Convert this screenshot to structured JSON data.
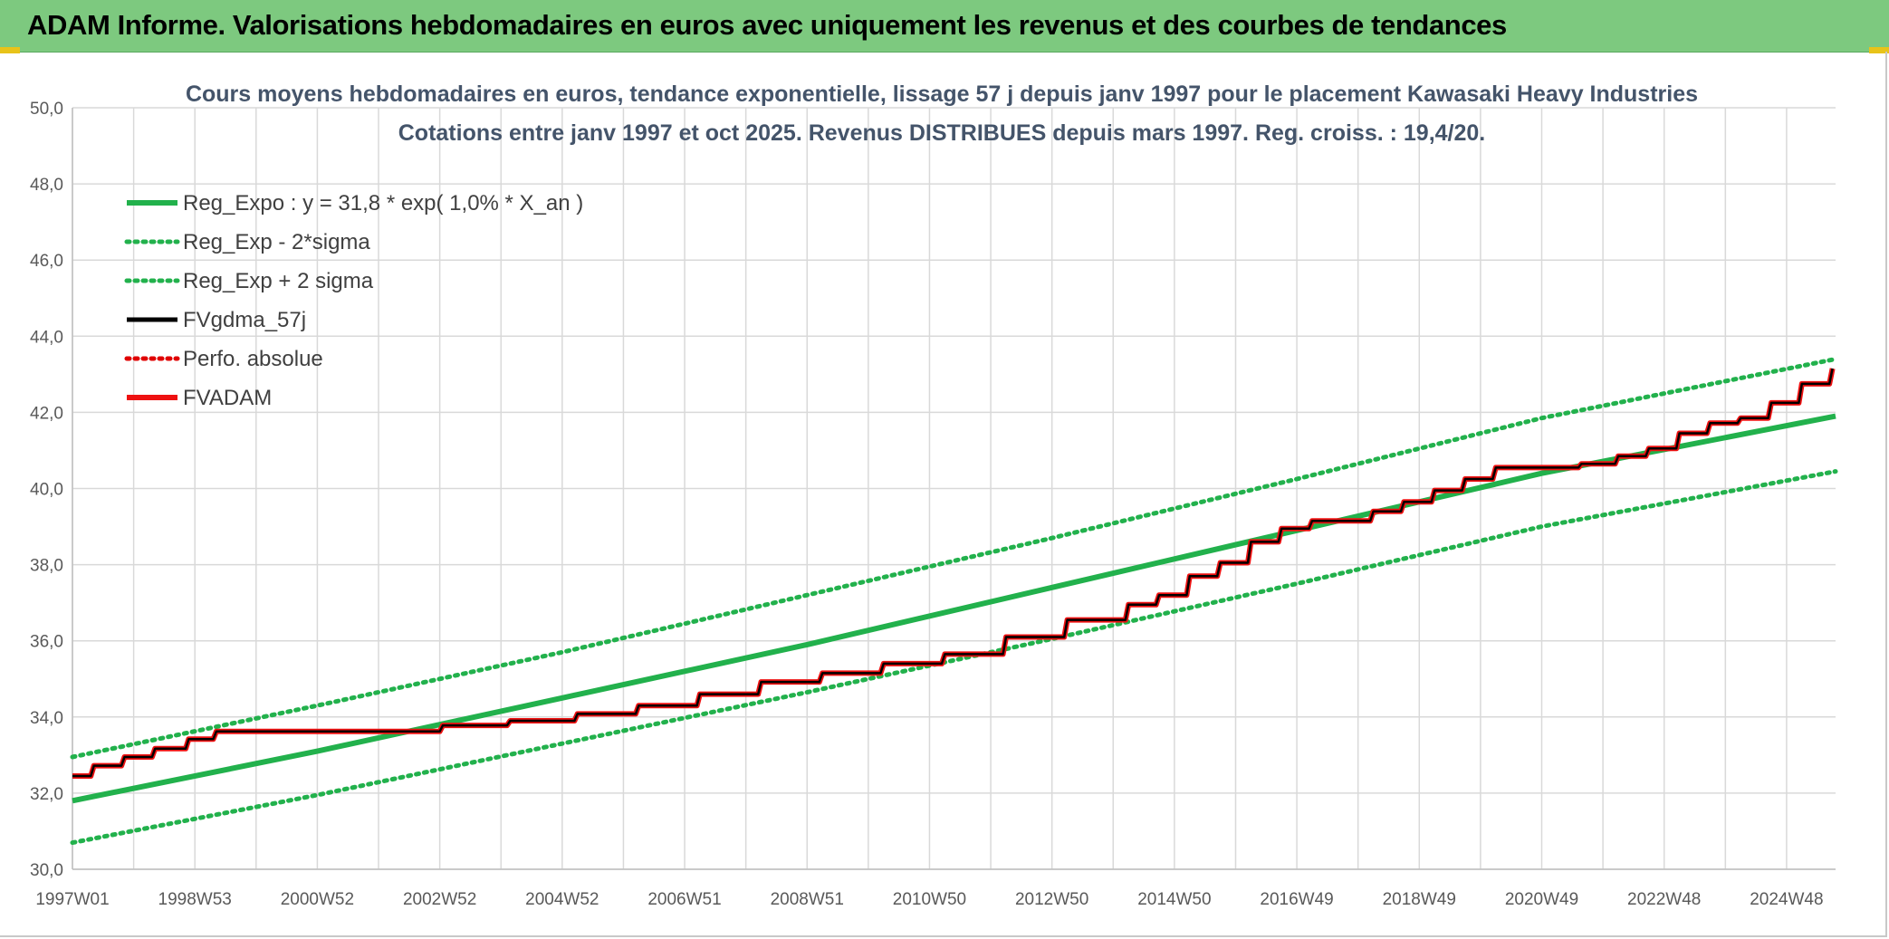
{
  "banner": {
    "title": "ADAM Informe. Valorisations hebdomadaires en euros avec uniquement les revenus et des courbes de tendances"
  },
  "colors": {
    "banner_bg": "#7dc97f",
    "accent_tab": "#e8c31a",
    "reg_expo": "#22b14c",
    "reg_band": "#22b14c",
    "fvgdma": "#000000",
    "perfo": "#e00000",
    "fvadam": "#ee1111",
    "grid": "#d9d9d9"
  },
  "chart_data": {
    "type": "line",
    "title_line1": "Cours moyens hebdomadaires en euros, tendance exponentielle, lissage 57 j depuis janv 1997 pour le placement Kawasaki Heavy Industries",
    "title_line2": "Cotations entre janv 1997 et oct 2025. Revenus DISTRIBUES depuis mars 1997. Reg. croiss. : 19,4/20.",
    "xlabel": "",
    "ylabel": "",
    "ylim": [
      30,
      50
    ],
    "y_ticks": [
      "30,0",
      "32,0",
      "34,0",
      "36,0",
      "38,0",
      "40,0",
      "42,0",
      "44,0",
      "46,0",
      "48,0",
      "50,0"
    ],
    "x_range": [
      1997.0,
      2025.8
    ],
    "x_ticks": [
      {
        "x": 1997.0,
        "label": "1997W01"
      },
      {
        "x": 1999.0,
        "label": "1998W53"
      },
      {
        "x": 2001.0,
        "label": "2000W52"
      },
      {
        "x": 2003.0,
        "label": "2002W52"
      },
      {
        "x": 2005.0,
        "label": "2004W52"
      },
      {
        "x": 2007.0,
        "label": "2006W51"
      },
      {
        "x": 2009.0,
        "label": "2008W51"
      },
      {
        "x": 2011.0,
        "label": "2010W50"
      },
      {
        "x": 2013.0,
        "label": "2012W50"
      },
      {
        "x": 2015.0,
        "label": "2014W50"
      },
      {
        "x": 2017.0,
        "label": "2016W49"
      },
      {
        "x": 2019.0,
        "label": "2018W49"
      },
      {
        "x": 2021.0,
        "label": "2020W49"
      },
      {
        "x": 2023.0,
        "label": "2022W48"
      },
      {
        "x": 2025.0,
        "label": "2024W48"
      }
    ],
    "grid": true,
    "legend_position": "top-left",
    "series": [
      {
        "name": "Reg_Expo : y = 31,8 * exp( 1,0% *  X_an )",
        "style": "solid-thick",
        "color": "#22b14c",
        "points": [
          [
            1997.0,
            31.8
          ],
          [
            2001.0,
            33.1
          ],
          [
            2005.0,
            34.5
          ],
          [
            2009.0,
            35.9
          ],
          [
            2013.0,
            37.4
          ],
          [
            2017.0,
            38.9
          ],
          [
            2021.0,
            40.4
          ],
          [
            2025.8,
            41.9
          ]
        ]
      },
      {
        "name": "Reg_Exp - 2*sigma",
        "style": "dotted",
        "color": "#22b14c",
        "points": [
          [
            1997.0,
            30.7
          ],
          [
            2001.0,
            31.95
          ],
          [
            2005.0,
            33.3
          ],
          [
            2009.0,
            34.65
          ],
          [
            2013.0,
            36.05
          ],
          [
            2017.0,
            37.5
          ],
          [
            2021.0,
            39.0
          ],
          [
            2025.8,
            40.45
          ]
        ]
      },
      {
        "name": "Reg_Exp + 2 sigma",
        "style": "dotted",
        "color": "#22b14c",
        "points": [
          [
            1997.0,
            32.95
          ],
          [
            2001.0,
            34.3
          ],
          [
            2005.0,
            35.7
          ],
          [
            2009.0,
            37.2
          ],
          [
            2013.0,
            38.7
          ],
          [
            2017.0,
            40.25
          ],
          [
            2021.0,
            41.85
          ],
          [
            2025.8,
            43.4
          ]
        ]
      },
      {
        "name": "FVgdma_57j",
        "style": "solid",
        "color": "#000000",
        "points": [
          [
            1997.0,
            32.45
          ],
          [
            1997.3,
            32.45
          ],
          [
            1997.35,
            32.72
          ],
          [
            1997.8,
            32.72
          ],
          [
            1997.85,
            32.95
          ],
          [
            1998.3,
            32.95
          ],
          [
            1998.35,
            33.17
          ],
          [
            1998.85,
            33.17
          ],
          [
            1998.9,
            33.42
          ],
          [
            1999.3,
            33.42
          ],
          [
            1999.35,
            33.62
          ],
          [
            2001.0,
            33.62
          ],
          [
            2003.0,
            33.62
          ],
          [
            2003.05,
            33.78
          ],
          [
            2004.1,
            33.78
          ],
          [
            2004.15,
            33.9
          ],
          [
            2005.2,
            33.9
          ],
          [
            2005.25,
            34.08
          ],
          [
            2006.2,
            34.08
          ],
          [
            2006.25,
            34.3
          ],
          [
            2007.2,
            34.3
          ],
          [
            2007.25,
            34.6
          ],
          [
            2008.2,
            34.6
          ],
          [
            2008.25,
            34.92
          ],
          [
            2009.2,
            34.92
          ],
          [
            2009.25,
            35.15
          ],
          [
            2010.2,
            35.15
          ],
          [
            2010.25,
            35.4
          ],
          [
            2011.2,
            35.4
          ],
          [
            2011.25,
            35.65
          ],
          [
            2012.2,
            35.65
          ],
          [
            2012.25,
            36.1
          ],
          [
            2013.2,
            36.1
          ],
          [
            2013.25,
            36.55
          ],
          [
            2014.2,
            36.55
          ],
          [
            2014.25,
            36.95
          ],
          [
            2014.7,
            36.95
          ],
          [
            2014.75,
            37.2
          ],
          [
            2015.2,
            37.2
          ],
          [
            2015.25,
            37.7
          ],
          [
            2015.7,
            37.7
          ],
          [
            2015.75,
            38.05
          ],
          [
            2016.2,
            38.05
          ],
          [
            2016.25,
            38.6
          ],
          [
            2016.7,
            38.6
          ],
          [
            2016.75,
            38.95
          ],
          [
            2017.2,
            38.95
          ],
          [
            2017.25,
            39.15
          ],
          [
            2018.2,
            39.15
          ],
          [
            2018.25,
            39.4
          ],
          [
            2018.7,
            39.4
          ],
          [
            2018.75,
            39.65
          ],
          [
            2019.2,
            39.65
          ],
          [
            2019.25,
            39.95
          ],
          [
            2019.7,
            39.95
          ],
          [
            2019.75,
            40.25
          ],
          [
            2020.2,
            40.25
          ],
          [
            2020.25,
            40.55
          ],
          [
            2021.6,
            40.55
          ],
          [
            2021.65,
            40.65
          ],
          [
            2022.2,
            40.65
          ],
          [
            2022.25,
            40.85
          ],
          [
            2022.7,
            40.85
          ],
          [
            2022.75,
            41.05
          ],
          [
            2023.2,
            41.05
          ],
          [
            2023.25,
            41.45
          ],
          [
            2023.7,
            41.45
          ],
          [
            2023.75,
            41.72
          ],
          [
            2024.2,
            41.72
          ],
          [
            2024.25,
            41.85
          ],
          [
            2024.7,
            41.85
          ],
          [
            2024.75,
            42.25
          ],
          [
            2025.2,
            42.25
          ],
          [
            2025.25,
            42.75
          ],
          [
            2025.7,
            42.75
          ],
          [
            2025.75,
            43.15
          ]
        ]
      },
      {
        "name": "Perfo. absolue",
        "style": "dotted",
        "color": "#e00000",
        "points": []
      },
      {
        "name": "FVADAM",
        "style": "solid-thick",
        "color": "#ee1111",
        "points": [
          [
            1997.0,
            32.45
          ],
          [
            1997.3,
            32.45
          ],
          [
            1997.35,
            32.72
          ],
          [
            1997.8,
            32.72
          ],
          [
            1997.85,
            32.95
          ],
          [
            1998.3,
            32.95
          ],
          [
            1998.35,
            33.17
          ],
          [
            1998.85,
            33.17
          ],
          [
            1998.9,
            33.42
          ],
          [
            1999.3,
            33.42
          ],
          [
            1999.35,
            33.62
          ],
          [
            2001.0,
            33.62
          ],
          [
            2003.0,
            33.62
          ],
          [
            2003.05,
            33.78
          ],
          [
            2004.1,
            33.78
          ],
          [
            2004.15,
            33.9
          ],
          [
            2005.2,
            33.9
          ],
          [
            2005.25,
            34.08
          ],
          [
            2006.2,
            34.08
          ],
          [
            2006.25,
            34.3
          ],
          [
            2007.2,
            34.3
          ],
          [
            2007.25,
            34.6
          ],
          [
            2008.2,
            34.6
          ],
          [
            2008.25,
            34.92
          ],
          [
            2009.2,
            34.92
          ],
          [
            2009.25,
            35.15
          ],
          [
            2010.2,
            35.15
          ],
          [
            2010.25,
            35.4
          ],
          [
            2011.2,
            35.4
          ],
          [
            2011.25,
            35.65
          ],
          [
            2012.2,
            35.65
          ],
          [
            2012.25,
            36.1
          ],
          [
            2013.2,
            36.1
          ],
          [
            2013.25,
            36.55
          ],
          [
            2014.2,
            36.55
          ],
          [
            2014.25,
            36.95
          ],
          [
            2014.7,
            36.95
          ],
          [
            2014.75,
            37.2
          ],
          [
            2015.2,
            37.2
          ],
          [
            2015.25,
            37.7
          ],
          [
            2015.7,
            37.7
          ],
          [
            2015.75,
            38.05
          ],
          [
            2016.2,
            38.05
          ],
          [
            2016.25,
            38.6
          ],
          [
            2016.7,
            38.6
          ],
          [
            2016.75,
            38.95
          ],
          [
            2017.2,
            38.95
          ],
          [
            2017.25,
            39.15
          ],
          [
            2018.2,
            39.15
          ],
          [
            2018.25,
            39.4
          ],
          [
            2018.7,
            39.4
          ],
          [
            2018.75,
            39.65
          ],
          [
            2019.2,
            39.65
          ],
          [
            2019.25,
            39.95
          ],
          [
            2019.7,
            39.95
          ],
          [
            2019.75,
            40.25
          ],
          [
            2020.2,
            40.25
          ],
          [
            2020.25,
            40.55
          ],
          [
            2021.6,
            40.55
          ],
          [
            2021.65,
            40.65
          ],
          [
            2022.2,
            40.65
          ],
          [
            2022.25,
            40.85
          ],
          [
            2022.7,
            40.85
          ],
          [
            2022.75,
            41.05
          ],
          [
            2023.2,
            41.05
          ],
          [
            2023.25,
            41.45
          ],
          [
            2023.7,
            41.45
          ],
          [
            2023.75,
            41.72
          ],
          [
            2024.2,
            41.72
          ],
          [
            2024.25,
            41.85
          ],
          [
            2024.7,
            41.85
          ],
          [
            2024.75,
            42.25
          ],
          [
            2025.2,
            42.25
          ],
          [
            2025.25,
            42.75
          ],
          [
            2025.7,
            42.75
          ],
          [
            2025.75,
            43.15
          ]
        ]
      }
    ]
  }
}
